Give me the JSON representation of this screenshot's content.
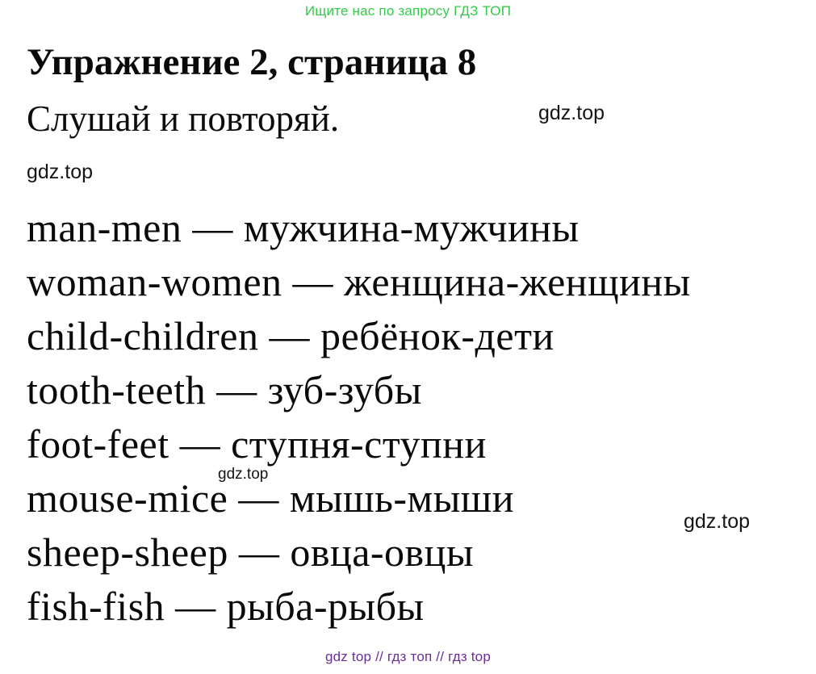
{
  "header": {
    "promo_text": "Ищите нас по запросу ГДЗ ТОП",
    "color": "#35c94a"
  },
  "title": {
    "text": "Упражнение 2, страница 8"
  },
  "instruction": {
    "text": "Слушай и повторяй."
  },
  "watermarks": {
    "top_right": "gdz.top",
    "left": "gdz.top",
    "mid_small": "gdz.top",
    "mid_right": "gdz.top"
  },
  "word_list": {
    "items": [
      "man-men — мужчина-мужчины",
      "woman-women — женщина-женщины",
      "child-children — ребёнок-дети",
      "tooth-teeth — зуб-зубы",
      "foot-feet — ступня-ступни",
      "mouse-mice — мышь-мыши",
      "sheep-sheep — овца-овцы",
      "fish-fish — рыба-рыбы"
    ]
  },
  "footer": {
    "text": "gdz top // гдз топ // гдз top",
    "color": "#6a2e93"
  }
}
